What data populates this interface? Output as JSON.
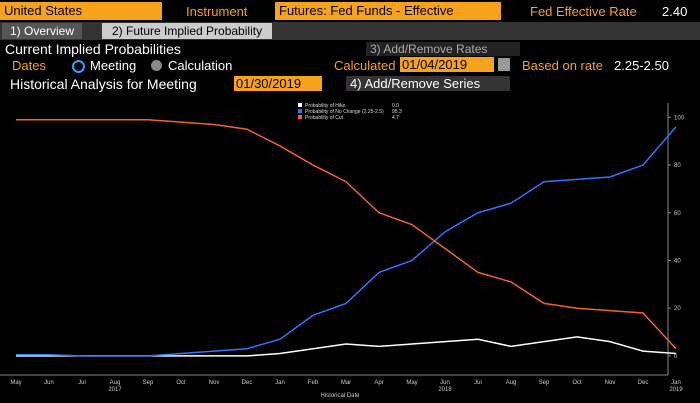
{
  "ui": {
    "country": "United States",
    "instrument_label": "Instrument",
    "instrument": "Futures: Fed Funds - Effective",
    "rate_label": "Fed Effective Rate",
    "rate": "2.40",
    "tabs": [
      "1) Overview",
      "2) Future Implied Probability"
    ],
    "section_title": "Current Implied Probabilities",
    "add_rates": "3) Add/Remove Rates",
    "dates_label": "Dates",
    "options": [
      "Meeting",
      "Calculation"
    ],
    "calculated_label": "Calculated",
    "calculated": "01/04/2019",
    "based_label": "Based on rate",
    "based": "2.25-2.50",
    "hist_label": "Historical Analysis for Meeting",
    "meeting": "01/30/2019",
    "add_series": "4) Add/Remove Series"
  },
  "chart_data": {
    "type": "line",
    "x_label": "Historical Date",
    "categories": [
      "May",
      "Jun",
      "Jul",
      "Aug",
      "Sep",
      "Oct",
      "Nov",
      "Dec",
      "Jan",
      "Feb",
      "Mar",
      "Apr",
      "May",
      "Jun",
      "Jul",
      "Aug",
      "Sep",
      "Oct",
      "Nov",
      "Dec",
      "Jan"
    ],
    "year_categories": [
      null,
      null,
      null,
      "2017",
      null,
      null,
      null,
      null,
      null,
      null,
      null,
      null,
      null,
      "2018",
      null,
      null,
      null,
      null,
      null,
      null,
      "2019"
    ],
    "series": [
      {
        "name": "Probability of Hike",
        "legend_value": "0.0",
        "color": "#ffffff",
        "values": [
          0,
          0,
          0,
          0,
          0,
          0,
          0,
          0,
          1,
          3,
          5,
          4,
          5,
          6,
          7,
          4,
          6,
          8,
          6,
          2,
          1
        ]
      },
      {
        "name": "Probability of No Change (2.25-2.5)",
        "legend_value": "95.3",
        "color": "#2f74ff",
        "values": [
          0.5,
          0.5,
          0,
          0,
          0,
          1,
          2,
          3,
          7,
          17,
          22,
          35,
          40,
          52,
          60,
          64,
          73,
          74,
          75,
          80,
          96
        ]
      },
      {
        "name": "Probability of Cut",
        "legend_value": "4.7",
        "color": "#f0622a",
        "values": [
          99,
          99,
          99,
          99,
          99,
          98,
          97,
          95,
          88,
          80,
          73,
          60,
          55,
          45,
          35,
          31,
          22,
          20,
          19,
          18,
          3
        ]
      }
    ],
    "ylim": [
      -8,
      106
    ],
    "yticks": [
      0,
      20,
      40,
      60,
      80,
      100
    ]
  }
}
